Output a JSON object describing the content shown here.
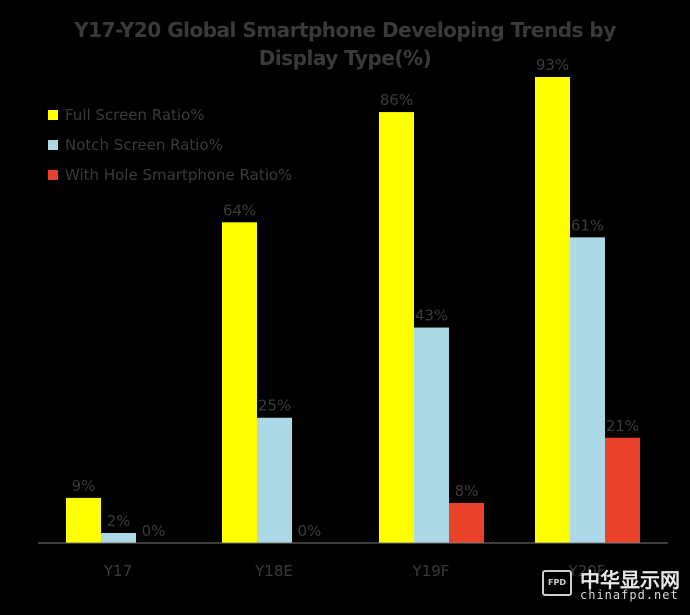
{
  "chart_data": {
    "type": "bar",
    "title": "Y17-Y20 Global Smartphone Developing Trends by Display Type(%)",
    "title_lines": [
      "Y17-Y20 Global Smartphone Developing Trends by",
      "Display Type(%)"
    ],
    "categories": [
      "Y17",
      "Y18E",
      "Y19F",
      "Y20F"
    ],
    "series": [
      {
        "name": "Full Screen Ratio%",
        "color": "#ffff00",
        "values": [
          9,
          64,
          86,
          93
        ],
        "labels": [
          "9%",
          "64%",
          "86%",
          "93%"
        ]
      },
      {
        "name": "Notch Screen Ratio%",
        "color": "#add8e6",
        "values": [
          2,
          25,
          43,
          61
        ],
        "labels": [
          "2%",
          "25%",
          "43%",
          "61%"
        ]
      },
      {
        "name": "With Hole Smartphone Ratio%",
        "color": "#e8432a",
        "values": [
          0,
          0,
          8,
          21
        ],
        "labels": [
          "0%",
          "0%",
          "8%",
          "21%"
        ]
      }
    ],
    "ylim": [
      0,
      100
    ],
    "grid": false,
    "legend_position": "top-left"
  },
  "watermark": {
    "logo_text": "FPD",
    "name": "中华显示网",
    "url": "chinafpd.net"
  }
}
